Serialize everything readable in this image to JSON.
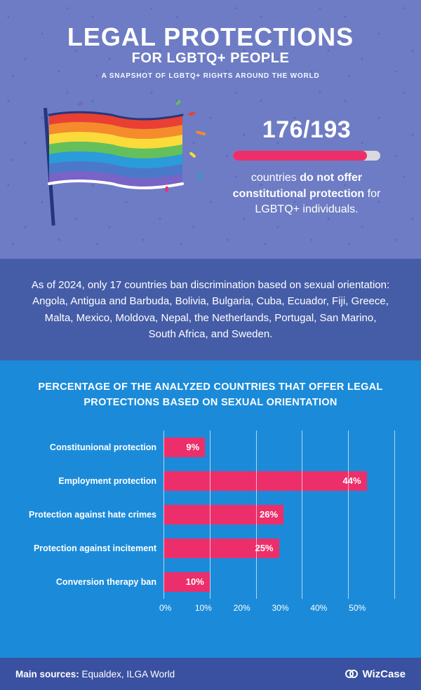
{
  "colors": {
    "top_bg": "#6d7cc4",
    "mid_bg": "#455da7",
    "chart_bg": "#1b8bd9",
    "foot_bg": "#3a50a0",
    "accent": "#ec2f6a",
    "progress_track": "#d9d9df",
    "grid": "rgba(255,255,255,.65)",
    "white": "#ffffff"
  },
  "header": {
    "title_main": "LEGAL PROTECTIONS",
    "title_sub": "FOR LGBTQ+ PEOPLE",
    "tagline": "A SNAPSHOT OF LGBTQ+ RIGHTS AROUND THE WORLD"
  },
  "stat": {
    "ratio": "176/193",
    "progress_pct": 91,
    "text_pre": "countries ",
    "text_bold": "do not offer constitutional protection",
    "text_post": " for LGBTQ+ individuals."
  },
  "flag_stripes": [
    "#ea3f33",
    "#f68b2b",
    "#fadb3a",
    "#64c05a",
    "#2a9cd9",
    "#4b79c9",
    "#7863c7"
  ],
  "confetti": [
    "#ea3f33",
    "#f68b2b",
    "#fadb3a",
    "#64c05a",
    "#2a9cd9",
    "#ec2f6a",
    "#7863c7"
  ],
  "mid_paragraph": "As of 2024, only 17 countries ban discrimination based on sexual orientation: Angola, Antigua and Barbuda, Bolivia, Bulgaria, Cuba, Ecuador, Fiji, Greece, Malta, Mexico, Moldova, Nepal, the Netherlands, Portugal, San Marino, South Africa, and Sweden.",
  "chart": {
    "title": "PERCENTAGE OF THE ANALYZED COUNTRIES THAT OFFER LEGAL PROTECTIONS BASED ON SEXUAL ORIENTATION",
    "x_max": 50,
    "x_tick_step": 10,
    "x_ticks": [
      "0%",
      "10%",
      "20%",
      "30%",
      "40%",
      "50%"
    ],
    "bar_color": "#ec2f6a",
    "items": [
      {
        "label": "Constitunional protection",
        "value": 9,
        "text": "9%"
      },
      {
        "label": "Employment protection",
        "value": 44,
        "text": "44%"
      },
      {
        "label": "Protection against hate crimes",
        "value": 26,
        "text": "26%"
      },
      {
        "label": "Protection against incitement",
        "value": 25,
        "text": "25%"
      },
      {
        "label": "Conversion therapy ban",
        "value": 10,
        "text": "10%"
      }
    ]
  },
  "footer": {
    "sources_label": "Main sources:",
    "sources_value": " Equaldex, ILGA World",
    "brand": "WizCase"
  }
}
